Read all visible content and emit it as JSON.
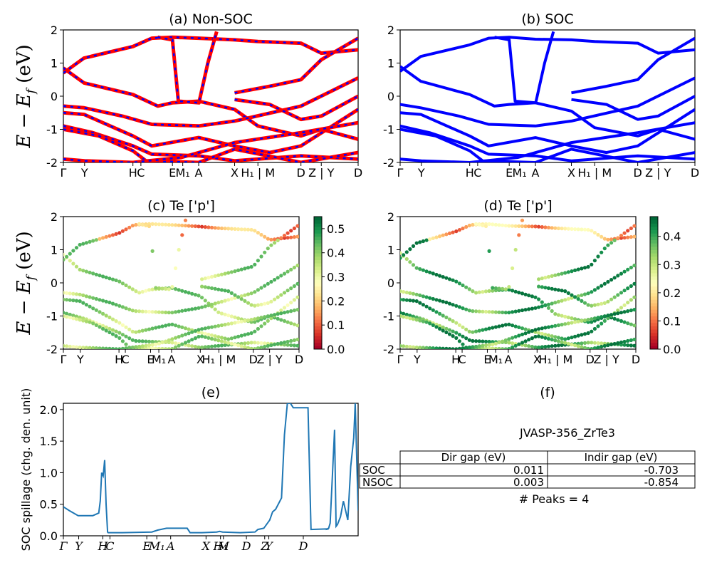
{
  "colors": {
    "nonsoc_red": "#ff0000",
    "nonsoc_blue": "#0000ff",
    "soc_blue": "#0000ff",
    "spillage_line": "#1f77b4",
    "colormap": "RdYlGn"
  },
  "y_label": {
    "lhs": "E − E",
    "sub": "f",
    "rhs": " (eV)"
  },
  "k_path_ticks": [
    {
      "label": "Γ",
      "x": 0.0
    },
    {
      "label": "Y",
      "x": 0.072
    },
    {
      "label": "H",
      "x": 0.236
    },
    {
      "label": "C",
      "x": 0.263
    },
    {
      "label": "E",
      "x": 0.37
    },
    {
      "label": "M₁",
      "x": 0.405
    },
    {
      "label": "A",
      "x": 0.459
    },
    {
      "label": "X",
      "x": 0.581
    },
    {
      "label": "H₁ | M",
      "x": 0.66
    },
    {
      "label": "D",
      "x": 0.806
    },
    {
      "label": "Z | Y",
      "x": 0.875
    },
    {
      "label": "D",
      "x": 1.0
    }
  ],
  "spillage_ticks": [
    {
      "label": "Γ",
      "x": 0.0
    },
    {
      "label": "Y",
      "x": 0.052
    },
    {
      "label": "H",
      "x": 0.134
    },
    {
      "label": "C",
      "x": 0.158
    },
    {
      "label": "E",
      "x": 0.283
    },
    {
      "label": "M₁",
      "x": 0.317
    },
    {
      "label": "A",
      "x": 0.364
    },
    {
      "label": "X",
      "x": 0.484
    },
    {
      "label": "H₁",
      "x": 0.533
    },
    {
      "label": "M",
      "x": 0.543
    },
    {
      "label": "D",
      "x": 0.621
    },
    {
      "label": "Z",
      "x": 0.683
    },
    {
      "label": "Y",
      "x": 0.697
    },
    {
      "label": "D",
      "x": 0.814
    }
  ],
  "chart_data": [
    {
      "id": "a",
      "type": "line",
      "title": "(a) Non-SOC",
      "ylabel": "E − E_f (eV)",
      "ylim": [
        -2,
        2
      ],
      "yticks": [
        -2,
        -1,
        0,
        1,
        2
      ],
      "series_style": "red with blue dashes",
      "bands": [
        {
          "x": [
            0,
            0.07,
            0.236,
            0.32,
            0.37,
            0.459,
            0.581,
            0.66,
            0.806,
            0.875,
            1.0
          ],
          "y": [
            0.85,
            0.4,
            0.05,
            -0.3,
            -0.2,
            -0.15,
            -0.4,
            -0.9,
            -1.2,
            -1.0,
            -1.3
          ]
        },
        {
          "x": [
            0,
            0.07,
            0.236,
            0.3,
            0.37,
            0.459,
            0.581,
            0.66,
            0.806,
            0.875,
            1.0
          ],
          "y": [
            0.7,
            1.15,
            1.5,
            1.75,
            1.78,
            1.75,
            1.7,
            1.65,
            1.6,
            1.3,
            1.4
          ]
        },
        {
          "x": [
            0.32,
            0.37,
            0.39,
            0.46,
            0.49,
            0.52
          ],
          "y": [
            1.78,
            1.7,
            -0.15,
            -0.2,
            1.0,
            1.95
          ]
        },
        {
          "x": [
            0,
            0.07,
            0.2,
            0.3,
            0.459,
            0.581,
            0.806,
            1.0
          ],
          "y": [
            -0.3,
            -0.35,
            -0.6,
            -0.85,
            -0.9,
            -0.75,
            -0.3,
            0.55
          ]
        },
        {
          "x": [
            0,
            0.07,
            0.236,
            0.3,
            0.459,
            0.581,
            0.7,
            0.806,
            1.0
          ],
          "y": [
            -0.5,
            -0.55,
            -1.2,
            -1.5,
            -1.25,
            -1.5,
            -1.7,
            -1.5,
            -0.4
          ]
        },
        {
          "x": [
            0,
            0.1,
            0.236,
            0.3,
            0.459,
            0.581,
            0.806,
            1.0
          ],
          "y": [
            -0.9,
            -1.1,
            -1.5,
            -1.75,
            -1.8,
            -1.95,
            -1.8,
            -1.9
          ]
        },
        {
          "x": [
            0,
            0.12,
            0.236,
            0.28,
            0.459,
            0.581,
            0.806,
            1.0
          ],
          "y": [
            -1.0,
            -1.2,
            -1.65,
            -1.95,
            -2.0,
            -1.6,
            -2.0,
            -1.7
          ]
        },
        {
          "x": [
            0.581,
            0.7,
            0.806,
            0.875,
            1.0
          ],
          "y": [
            0.1,
            0.3,
            0.5,
            1.1,
            1.75
          ]
        },
        {
          "x": [
            0.581,
            0.7,
            0.806,
            0.875,
            1.0
          ],
          "y": [
            -0.1,
            -0.25,
            -0.7,
            -0.6,
            0.0
          ]
        },
        {
          "x": [
            0,
            0.072,
            0.236,
            0.4,
            0.581,
            0.806,
            1.0
          ],
          "y": [
            -1.9,
            -1.95,
            -2.0,
            -1.85,
            -1.4,
            -1.1,
            -0.8
          ]
        }
      ]
    },
    {
      "id": "b",
      "type": "line",
      "title": "(b) SOC",
      "ylim": [
        -2,
        2
      ],
      "yticks": [
        -2,
        -1,
        0,
        1,
        2
      ],
      "bands": [
        {
          "x": [
            0,
            0.07,
            0.236,
            0.32,
            0.37,
            0.459,
            0.581,
            0.66,
            0.806,
            0.875,
            1.0
          ],
          "y": [
            0.9,
            0.45,
            0.05,
            -0.3,
            -0.25,
            -0.2,
            -0.45,
            -0.95,
            -1.2,
            -1.0,
            -1.3
          ]
        },
        {
          "x": [
            0,
            0.07,
            0.236,
            0.3,
            0.37,
            0.459,
            0.581,
            0.66,
            0.806,
            0.875,
            1.0
          ],
          "y": [
            0.75,
            1.2,
            1.55,
            1.75,
            1.78,
            1.72,
            1.7,
            1.65,
            1.6,
            1.3,
            1.4
          ]
        },
        {
          "x": [
            0.32,
            0.37,
            0.39,
            0.46,
            0.49,
            0.52
          ],
          "y": [
            1.78,
            1.7,
            -0.15,
            -0.2,
            1.0,
            1.95
          ]
        },
        {
          "x": [
            0,
            0.07,
            0.2,
            0.3,
            0.459,
            0.581,
            0.806,
            1.0
          ],
          "y": [
            -0.25,
            -0.35,
            -0.6,
            -0.85,
            -0.9,
            -0.75,
            -0.3,
            0.55
          ]
        },
        {
          "x": [
            0,
            0.07,
            0.236,
            0.3,
            0.459,
            0.581,
            0.7,
            0.806,
            1.0
          ],
          "y": [
            -0.5,
            -0.55,
            -1.2,
            -1.5,
            -1.25,
            -1.5,
            -1.7,
            -1.5,
            -0.4
          ]
        },
        {
          "x": [
            0,
            0.1,
            0.236,
            0.3,
            0.459,
            0.581,
            0.806,
            1.0
          ],
          "y": [
            -0.9,
            -1.1,
            -1.5,
            -1.75,
            -1.8,
            -1.95,
            -1.8,
            -1.9
          ]
        },
        {
          "x": [
            0,
            0.12,
            0.236,
            0.28,
            0.459,
            0.581,
            0.806,
            1.0
          ],
          "y": [
            -1.0,
            -1.2,
            -1.65,
            -1.95,
            -2.0,
            -1.6,
            -2.0,
            -1.7
          ]
        },
        {
          "x": [
            0.581,
            0.7,
            0.806,
            0.875,
            1.0
          ],
          "y": [
            0.1,
            0.3,
            0.5,
            1.1,
            1.75
          ]
        },
        {
          "x": [
            0.581,
            0.7,
            0.806,
            0.875,
            1.0
          ],
          "y": [
            -0.1,
            -0.25,
            -0.7,
            -0.6,
            0.0
          ]
        },
        {
          "x": [
            0,
            0.072,
            0.236,
            0.4,
            0.581,
            0.806,
            1.0
          ],
          "y": [
            -1.9,
            -1.95,
            -2.0,
            -1.85,
            -1.4,
            -1.1,
            -0.8
          ]
        }
      ]
    },
    {
      "id": "c",
      "type": "scatter",
      "title": "(c)  Te ['p']",
      "ylabel": "E − E_f (eV)",
      "ylim": [
        -2,
        2
      ],
      "yticks": [
        -2,
        -1,
        0,
        1,
        2
      ],
      "colorbar": {
        "min": 0.0,
        "max": 0.55,
        "ticks": [
          "0.0",
          "0.1",
          "0.2",
          "0.3",
          "0.4",
          "0.5"
        ]
      }
    },
    {
      "id": "d",
      "type": "scatter",
      "title": "(d) Te ['p']",
      "ylim": [
        -2,
        2
      ],
      "yticks": [
        -2,
        -1,
        0,
        1,
        2
      ],
      "colorbar": {
        "min": 0.0,
        "max": 0.47,
        "ticks": [
          "0.0",
          "0.1",
          "0.2",
          "0.3",
          "0.4"
        ]
      }
    },
    {
      "id": "e",
      "type": "line",
      "title": "(e)",
      "ylabel": "SOC spillage (chg. den. unit)",
      "ylim": [
        0,
        2.1
      ],
      "yticks": [
        "0.0",
        "0.5",
        "1.0",
        "1.5",
        "2.0"
      ],
      "x": [
        0,
        0.02,
        0.05,
        0.06,
        0.1,
        0.12,
        0.125,
        0.13,
        0.135,
        0.14,
        0.145,
        0.15,
        0.152,
        0.156,
        0.2,
        0.3,
        0.32,
        0.35,
        0.38,
        0.42,
        0.43,
        0.47,
        0.52,
        0.53,
        0.54,
        0.6,
        0.65,
        0.66,
        0.68,
        0.7,
        0.71,
        0.72,
        0.74,
        0.75,
        0.76,
        0.77,
        0.78,
        0.79,
        0.8,
        0.83,
        0.84,
        0.9,
        0.89,
        0.9,
        0.905,
        0.92,
        0.925,
        0.93,
        0.94,
        0.95,
        0.965,
        0.975,
        0.985,
        0.99,
        1.0
      ],
      "y": [
        0.46,
        0.4,
        0.32,
        0.32,
        0.32,
        0.36,
        0.55,
        1.0,
        0.95,
        1.2,
        0.5,
        0.06,
        0.05,
        0.05,
        0.05,
        0.06,
        0.09,
        0.12,
        0.12,
        0.12,
        0.05,
        0.05,
        0.06,
        0.07,
        0.06,
        0.05,
        0.06,
        0.1,
        0.12,
        0.25,
        0.38,
        0.42,
        0.6,
        1.6,
        2.1,
        2.1,
        2.03,
        2.03,
        2.03,
        2.03,
        0.1,
        0.11,
        0.1,
        0.12,
        0.2,
        1.68,
        0.15,
        0.18,
        0.3,
        0.55,
        0.25,
        1.1,
        1.55,
        2.1,
        0.4
      ]
    }
  ],
  "info_panel": {
    "title": "(f)",
    "material": "JVASP-356_ZrTe3",
    "table": {
      "columns": [
        "Dir gap (eV)",
        "Indir gap (eV)"
      ],
      "rows": [
        {
          "label": "SOC",
          "dir": "0.011",
          "indir": "-0.703"
        },
        {
          "label": "NSOC",
          "dir": "0.003",
          "indir": "-0.854"
        }
      ]
    },
    "peaks": "# Peaks = 4"
  }
}
